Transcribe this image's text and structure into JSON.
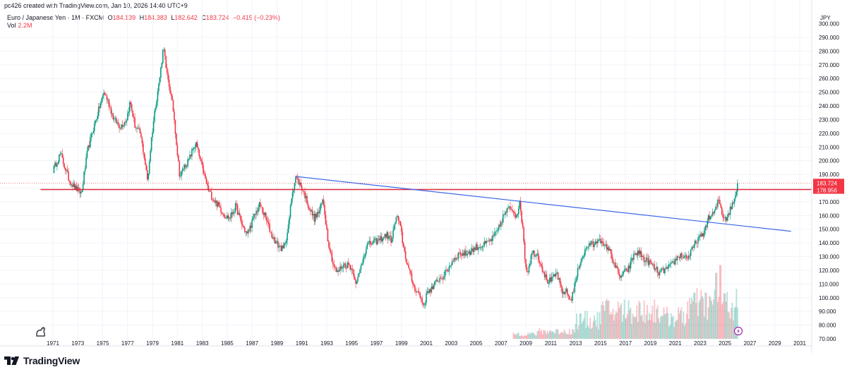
{
  "header": {
    "text": "pc426 created with TradingView.com, Jan 10, 2026 14:40 UTC+9"
  },
  "legend": {
    "title": "Euro / Japanese Yen · 1M · FXCM",
    "open_label": "O",
    "open": "184.139",
    "high_label": "H",
    "high": "184.383",
    "low_label": "L",
    "low": "182.642",
    "close_label": "C",
    "close": "183.724",
    "change": "−0.415 (−0.23%)",
    "vol_label": "Vol",
    "vol_value": "2.2M"
  },
  "axis": {
    "currency": "JPY"
  },
  "colors": {
    "up": "#089981",
    "down": "#f23645",
    "trendline": "#3d68e9",
    "support": "#e0283a",
    "current": "#f23645"
  },
  "footer": {
    "brand": "TradingView"
  },
  "chart_data": {
    "type": "candlestick",
    "title": "Euro / Japanese Yen · 1M · FXCM",
    "ylabel": "JPY",
    "ylim": [
      70,
      300
    ],
    "xlim": [
      1969.8,
      2031.5
    ],
    "x_ticks": [
      "1971",
      "1973",
      "1975",
      "1977",
      "1979",
      "1981",
      "1983",
      "1985",
      "1987",
      "1989",
      "1991",
      "1993",
      "1995",
      "1997",
      "1999",
      "2001",
      "2003",
      "2005",
      "2007",
      "2009",
      "2011",
      "2013",
      "2015",
      "2017",
      "2019",
      "2021",
      "2023",
      "2025",
      "2027",
      "2029",
      "2031"
    ],
    "y_ticks": [
      "80.000",
      "90.000",
      "100.000",
      "110.000",
      "120.000",
      "130.000",
      "140.000",
      "150.000",
      "160.000",
      "170.000",
      "180.000",
      "190.000",
      "200.000",
      "210.000",
      "220.000",
      "230.000",
      "240.000",
      "250.000",
      "260.000",
      "270.000",
      "280.000",
      "290.000"
    ],
    "price_key_points": [
      [
        1971.0,
        193
      ],
      [
        1971.6,
        205
      ],
      [
        1972.3,
        186
      ],
      [
        1972.8,
        180
      ],
      [
        1973.3,
        176
      ],
      [
        1973.5,
        190
      ],
      [
        1973.8,
        208
      ],
      [
        1974.2,
        222
      ],
      [
        1974.7,
        238
      ],
      [
        1975.1,
        250
      ],
      [
        1975.4,
        244
      ],
      [
        1975.9,
        230
      ],
      [
        1976.4,
        225
      ],
      [
        1976.9,
        230
      ],
      [
        1977.2,
        243
      ],
      [
        1977.6,
        225
      ],
      [
        1978.0,
        220
      ],
      [
        1978.3,
        205
      ],
      [
        1978.6,
        185
      ],
      [
        1978.9,
        215
      ],
      [
        1979.2,
        238
      ],
      [
        1979.6,
        262
      ],
      [
        1979.9,
        285
      ],
      [
        1980.1,
        265
      ],
      [
        1980.4,
        252
      ],
      [
        1980.7,
        235
      ],
      [
        1981.0,
        205
      ],
      [
        1981.2,
        188
      ],
      [
        1981.5,
        195
      ],
      [
        1981.9,
        200
      ],
      [
        1982.3,
        210
      ],
      [
        1982.5,
        212
      ],
      [
        1982.9,
        198
      ],
      [
        1983.2,
        188
      ],
      [
        1983.5,
        178
      ],
      [
        1983.9,
        172
      ],
      [
        1984.3,
        167
      ],
      [
        1984.8,
        160
      ],
      [
        1985.2,
        158
      ],
      [
        1985.7,
        167
      ],
      [
        1986.1,
        155
      ],
      [
        1986.6,
        146
      ],
      [
        1987.2,
        160
      ],
      [
        1987.6,
        168
      ],
      [
        1988.1,
        158
      ],
      [
        1988.6,
        145
      ],
      [
        1989.1,
        138
      ],
      [
        1989.5,
        135
      ],
      [
        1989.9,
        150
      ],
      [
        1990.2,
        176
      ],
      [
        1990.5,
        188
      ],
      [
        1990.9,
        182
      ],
      [
        1991.2,
        176
      ],
      [
        1991.6,
        165
      ],
      [
        1992.0,
        158
      ],
      [
        1992.4,
        163
      ],
      [
        1992.7,
        172
      ],
      [
        1993.1,
        142
      ],
      [
        1993.5,
        125
      ],
      [
        1993.8,
        118
      ],
      [
        1994.3,
        124
      ],
      [
        1994.8,
        124
      ],
      [
        1995.1,
        120
      ],
      [
        1995.4,
        110
      ],
      [
        1995.8,
        125
      ],
      [
        1996.2,
        138
      ],
      [
        1996.6,
        140
      ],
      [
        1997.2,
        142
      ],
      [
        1997.8,
        146
      ],
      [
        1998.2,
        142
      ],
      [
        1998.6,
        160
      ],
      [
        1998.9,
        152
      ],
      [
        1999.2,
        135
      ],
      [
        1999.6,
        120
      ],
      [
        2000.0,
        108
      ],
      [
        2000.4,
        103
      ],
      [
        2000.8,
        94
      ],
      [
        2001.1,
        105
      ],
      [
        2001.5,
        107
      ],
      [
        2001.9,
        113
      ],
      [
        2002.3,
        115
      ],
      [
        2002.7,
        120
      ],
      [
        2003.1,
        127
      ],
      [
        2003.6,
        132
      ],
      [
        2004.1,
        132
      ],
      [
        2004.6,
        134
      ],
      [
        2005.0,
        137
      ],
      [
        2005.5,
        138
      ],
      [
        2005.9,
        140
      ],
      [
        2006.3,
        143
      ],
      [
        2006.8,
        150
      ],
      [
        2007.2,
        160
      ],
      [
        2007.6,
        165
      ],
      [
        2007.9,
        165
      ],
      [
        2008.2,
        160
      ],
      [
        2008.5,
        168
      ],
      [
        2008.8,
        148
      ],
      [
        2008.9,
        130
      ],
      [
        2009.1,
        118
      ],
      [
        2009.5,
        133
      ],
      [
        2009.9,
        132
      ],
      [
        2010.3,
        122
      ],
      [
        2010.7,
        112
      ],
      [
        2011.1,
        113
      ],
      [
        2011.5,
        118
      ],
      [
        2011.9,
        103
      ],
      [
        2012.2,
        105
      ],
      [
        2012.6,
        98
      ],
      [
        2012.9,
        108
      ],
      [
        2013.3,
        125
      ],
      [
        2013.7,
        133
      ],
      [
        2014.1,
        140
      ],
      [
        2014.5,
        138
      ],
      [
        2014.9,
        145
      ],
      [
        2015.2,
        137
      ],
      [
        2015.6,
        137
      ],
      [
        2016.1,
        125
      ],
      [
        2016.5,
        115
      ],
      [
        2016.9,
        118
      ],
      [
        2017.3,
        122
      ],
      [
        2017.7,
        132
      ],
      [
        2018.1,
        133
      ],
      [
        2018.5,
        128
      ],
      [
        2018.9,
        126
      ],
      [
        2019.3,
        122
      ],
      [
        2019.7,
        118
      ],
      [
        2020.1,
        120
      ],
      [
        2020.5,
        122
      ],
      [
        2020.9,
        126
      ],
      [
        2021.3,
        131
      ],
      [
        2021.7,
        130
      ],
      [
        2022.1,
        130
      ],
      [
        2022.5,
        138
      ],
      [
        2022.8,
        143
      ],
      [
        2023.2,
        145
      ],
      [
        2023.6,
        157
      ],
      [
        2023.9,
        160
      ],
      [
        2024.2,
        163
      ],
      [
        2024.5,
        172
      ],
      [
        2024.8,
        160
      ],
      [
        2025.1,
        158
      ],
      [
        2025.4,
        164
      ],
      [
        2025.8,
        173
      ],
      [
        2026.0,
        183.724
      ]
    ],
    "volume_start_year": 2008.0,
    "volume_max_label": "2.2M",
    "support_line": {
      "price": 178.956,
      "x_start": 1970.0,
      "x_end": 2031.5,
      "label": "178.956"
    },
    "trend_line": {
      "x_start": 1990.5,
      "y_start": 188.5,
      "x_end": 2030.3,
      "y_end": 148.5
    },
    "last_price": {
      "price": 183.724,
      "label": "183.724"
    }
  }
}
